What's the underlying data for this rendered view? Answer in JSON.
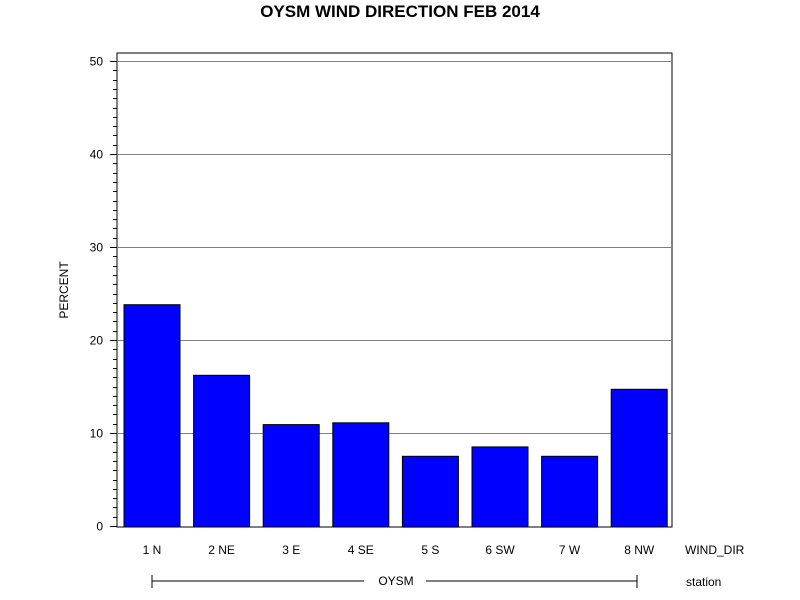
{
  "chart_data": {
    "type": "bar",
    "title": "OYSM WIND DIRECTION FEB 2014",
    "ylabel": "PERCENT",
    "xlabel": "WIND_DIR",
    "group_axis_label": "station",
    "group_label": "OYSM",
    "categories": [
      "1 N",
      "2 NE",
      "3 E",
      "4 SE",
      "5 S",
      "6 SW",
      "7 W",
      "8 NW"
    ],
    "values": [
      23.8,
      16.2,
      10.9,
      11.1,
      7.5,
      8.5,
      7.5,
      14.7
    ],
    "ylim": [
      0,
      50
    ],
    "yticks": [
      "0",
      "10",
      "20",
      "30",
      "40",
      "50"
    ],
    "grid": true,
    "bar_color": "#0000ff"
  }
}
